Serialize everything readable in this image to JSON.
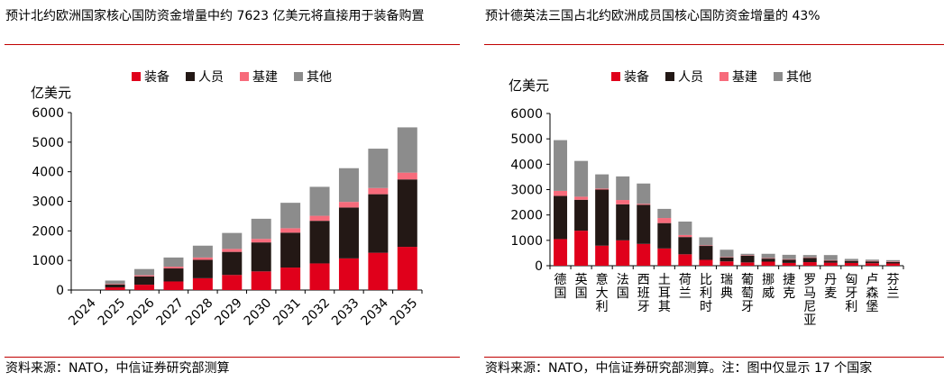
{
  "colors": {
    "rule": "#c00000",
    "equipment": "#e0001b",
    "personnel": "#231815",
    "infrastructure": "#f76b7b",
    "other": "#8c8c8c"
  },
  "left": {
    "title": "预计北约欧洲国家核心国防资金增量中约 7623 亿美元将直接用于装备购置",
    "source": "资料来源：NATO，中信证券研究部测算",
    "chart_data": {
      "type": "bar",
      "stacked": true,
      "ylabel": "亿美元",
      "ylim": [
        0,
        6000
      ],
      "yticks": [
        0,
        1000,
        2000,
        3000,
        4000,
        5000,
        6000
      ],
      "legend_position": "top",
      "categories": [
        "2024",
        "2025",
        "2026",
        "2027",
        "2028",
        "2029",
        "2030",
        "2031",
        "2032",
        "2033",
        "2034",
        "2035"
      ],
      "series": [
        {
          "name": "装备",
          "color": "#e0001b",
          "values": [
            0,
            90,
            180,
            290,
            400,
            510,
            630,
            760,
            900,
            1070,
            1260,
            1460
          ]
        },
        {
          "name": "人员",
          "color": "#231815",
          "values": [
            0,
            100,
            280,
            440,
            620,
            780,
            980,
            1180,
            1440,
            1720,
            1980,
            2280
          ]
        },
        {
          "name": "基建",
          "color": "#f76b7b",
          "values": [
            0,
            20,
            40,
            60,
            80,
            100,
            120,
            150,
            170,
            190,
            210,
            230
          ]
        },
        {
          "name": "其他",
          "color": "#8c8c8c",
          "values": [
            0,
            110,
            210,
            310,
            400,
            540,
            680,
            860,
            980,
            1140,
            1330,
            1530
          ]
        }
      ]
    }
  },
  "right": {
    "title": "预计德英法三国占北约欧洲成员国核心国防资金增量的 43%",
    "source": "资料来源：NATO，中信证券研究部测算。注：图中仅显示 17 个国家",
    "chart_data": {
      "type": "bar",
      "stacked": true,
      "ylabel": "亿美元",
      "ylim": [
        0,
        6000
      ],
      "yticks": [
        0,
        1000,
        2000,
        3000,
        4000,
        5000,
        6000
      ],
      "legend_position": "top",
      "categories": [
        "德国",
        "英国",
        "意大利",
        "法国",
        "西班牙",
        "土耳其",
        "荷兰",
        "比利时",
        "瑞典",
        "葡萄牙",
        "挪威",
        "捷克",
        "罗马尼亚",
        "丹麦",
        "匈牙利",
        "卢森堡",
        "芬兰"
      ],
      "series": [
        {
          "name": "装备",
          "color": "#e0001b",
          "values": [
            1050,
            1380,
            790,
            1000,
            860,
            680,
            450,
            230,
            170,
            130,
            160,
            110,
            140,
            120,
            110,
            100,
            90
          ]
        },
        {
          "name": "人员",
          "color": "#231815",
          "values": [
            1700,
            1220,
            2210,
            1420,
            1540,
            1000,
            680,
            550,
            150,
            270,
            120,
            130,
            170,
            80,
            80,
            70,
            60
          ]
        },
        {
          "name": "基建",
          "color": "#f76b7b",
          "values": [
            200,
            120,
            40,
            170,
            40,
            200,
            80,
            20,
            20,
            20,
            20,
            20,
            20,
            20,
            10,
            20,
            20
          ]
        },
        {
          "name": "其他",
          "color": "#8c8c8c",
          "values": [
            2000,
            1410,
            560,
            930,
            800,
            360,
            530,
            320,
            290,
            50,
            170,
            170,
            90,
            200,
            70,
            50,
            50
          ]
        }
      ]
    }
  }
}
